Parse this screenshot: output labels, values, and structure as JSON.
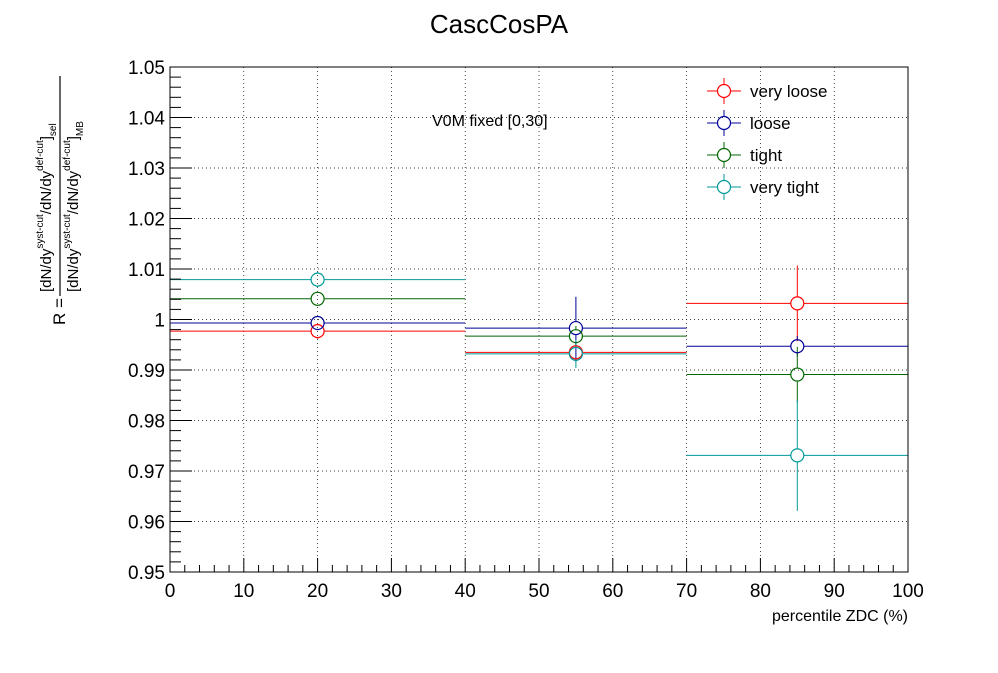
{
  "chart_data": {
    "type": "scatter",
    "title": "CascCosPA",
    "xlabel": "percentile ZDC (%)",
    "ylabel": {
      "prefix": "R =",
      "numerator": [
        "[dN/dy",
        "syst-cut",
        "/dN/dy",
        "def-cut",
        "]",
        "sel"
      ],
      "denominator": [
        "[dN/dy",
        "syst-cut",
        "/dN/dy",
        "def-cut",
        "]",
        "MB"
      ]
    },
    "annotation": "V0M fixed [0,30]",
    "xlim": [
      0,
      100
    ],
    "ylim": [
      0.95,
      1.05
    ],
    "xticks": [
      "0",
      "10",
      "20",
      "30",
      "40",
      "50",
      "60",
      "70",
      "80",
      "90",
      "100"
    ],
    "yticks": [
      "0.95",
      "0.96",
      "0.97",
      "0.98",
      "0.99",
      "1",
      "1.01",
      "1.02",
      "1.03",
      "1.04",
      "1.05"
    ],
    "grid": true,
    "legend_position": "top-right",
    "bins": [
      [
        0,
        40
      ],
      [
        40,
        70
      ],
      [
        70,
        100
      ]
    ],
    "x_centers": [
      20,
      55,
      85
    ],
    "series": [
      {
        "name": "very loose",
        "color": "#ff0000",
        "values": [
          0.9977,
          0.9935,
          1.0032
        ],
        "errors": [
          0.0015,
          0.002,
          0.0075
        ]
      },
      {
        "name": "loose",
        "color": "#000099",
        "values": [
          0.9993,
          0.9983,
          0.9947
        ],
        "errors": [
          0.001,
          0.0062,
          0.002
        ]
      },
      {
        "name": "tight",
        "color": "#006600",
        "values": [
          1.0041,
          0.9967,
          0.9891
        ],
        "errors": [
          0.0012,
          0.002,
          0.0055
        ]
      },
      {
        "name": "very tight",
        "color": "#009999",
        "values": [
          1.0079,
          0.9932,
          0.9731
        ],
        "errors": [
          0.0015,
          0.0028,
          0.011
        ]
      }
    ]
  }
}
